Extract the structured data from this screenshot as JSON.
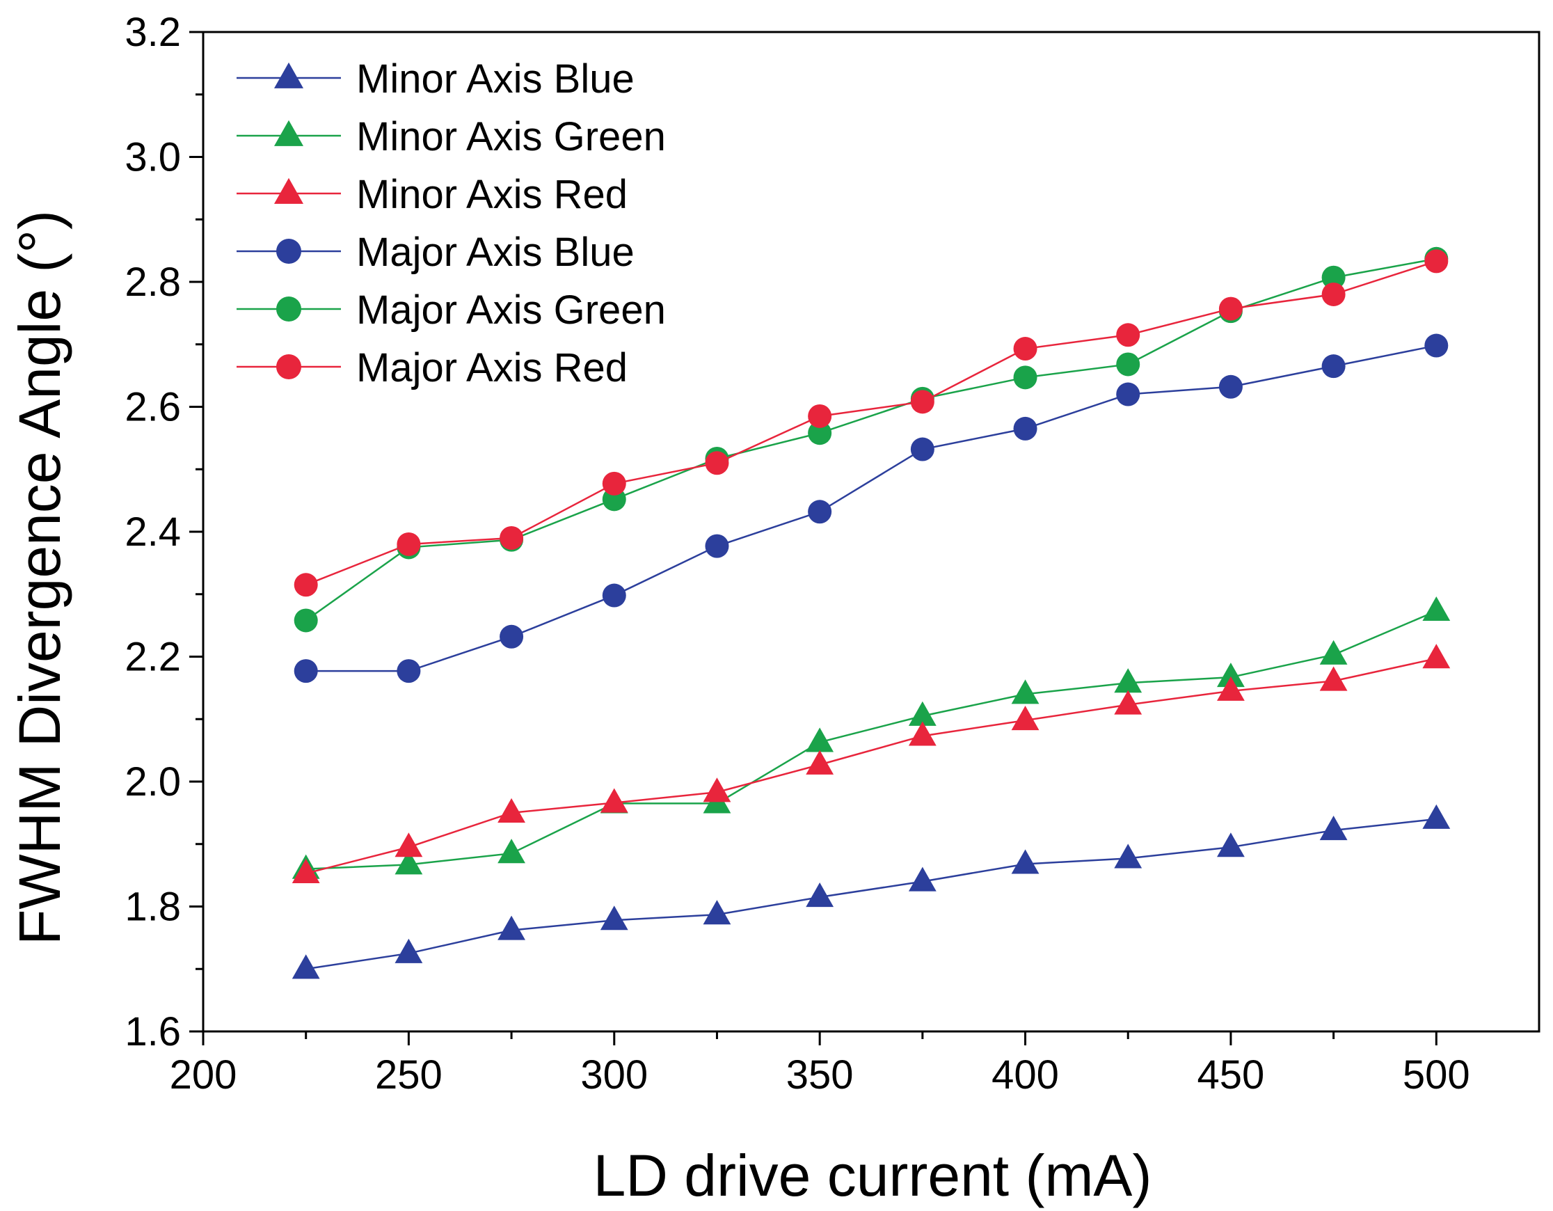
{
  "colors": {
    "blue": "#2c3f9c",
    "green": "#1aa34a",
    "red": "#e8253c"
  },
  "chart_data": {
    "type": "line",
    "title": "",
    "xlabel": "LD drive current (mA)",
    "ylabel": "FWHM Divergence Angle (°)",
    "xlim": [
      200,
      525
    ],
    "ylim": [
      1.6,
      3.2
    ],
    "xticks": [
      "200",
      "250",
      "300",
      "350",
      "400",
      "450",
      "500"
    ],
    "yticks": [
      "1.6",
      "1.8",
      "2.0",
      "2.2",
      "2.4",
      "2.6",
      "2.8",
      "3.0",
      "3.2"
    ],
    "legend_position": "top-left",
    "x": [
      225,
      250,
      275,
      300,
      325,
      350,
      375,
      400,
      425,
      450,
      475,
      500
    ],
    "series": [
      {
        "name": "Minor Axis Blue",
        "marker": "triangle",
        "color": "blue",
        "values": [
          1.7,
          1.725,
          1.762,
          1.778,
          1.787,
          1.815,
          1.84,
          1.868,
          1.877,
          1.895,
          1.922,
          1.94
        ]
      },
      {
        "name": "Minor Axis Green",
        "marker": "triangle",
        "color": "green",
        "values": [
          1.86,
          1.867,
          1.885,
          1.965,
          1.965,
          2.063,
          2.105,
          2.14,
          2.158,
          2.167,
          2.203,
          2.273
        ]
      },
      {
        "name": "Minor Axis Red",
        "marker": "triangle",
        "color": "red",
        "values": [
          1.853,
          1.895,
          1.95,
          1.966,
          1.983,
          2.027,
          2.073,
          2.098,
          2.123,
          2.145,
          2.161,
          2.197
        ]
      },
      {
        "name": "Major Axis Blue",
        "marker": "circle",
        "color": "blue",
        "values": [
          2.177,
          2.177,
          2.232,
          2.298,
          2.377,
          2.432,
          2.532,
          2.565,
          2.62,
          2.632,
          2.665,
          2.698
        ]
      },
      {
        "name": "Major Axis Green",
        "marker": "circle",
        "color": "green",
        "values": [
          2.258,
          2.375,
          2.387,
          2.452,
          2.517,
          2.558,
          2.613,
          2.647,
          2.668,
          2.753,
          2.807,
          2.837
        ]
      },
      {
        "name": "Major Axis Red",
        "marker": "circle",
        "color": "red",
        "values": [
          2.315,
          2.38,
          2.39,
          2.477,
          2.51,
          2.585,
          2.608,
          2.693,
          2.715,
          2.757,
          2.78,
          2.833
        ]
      }
    ]
  }
}
